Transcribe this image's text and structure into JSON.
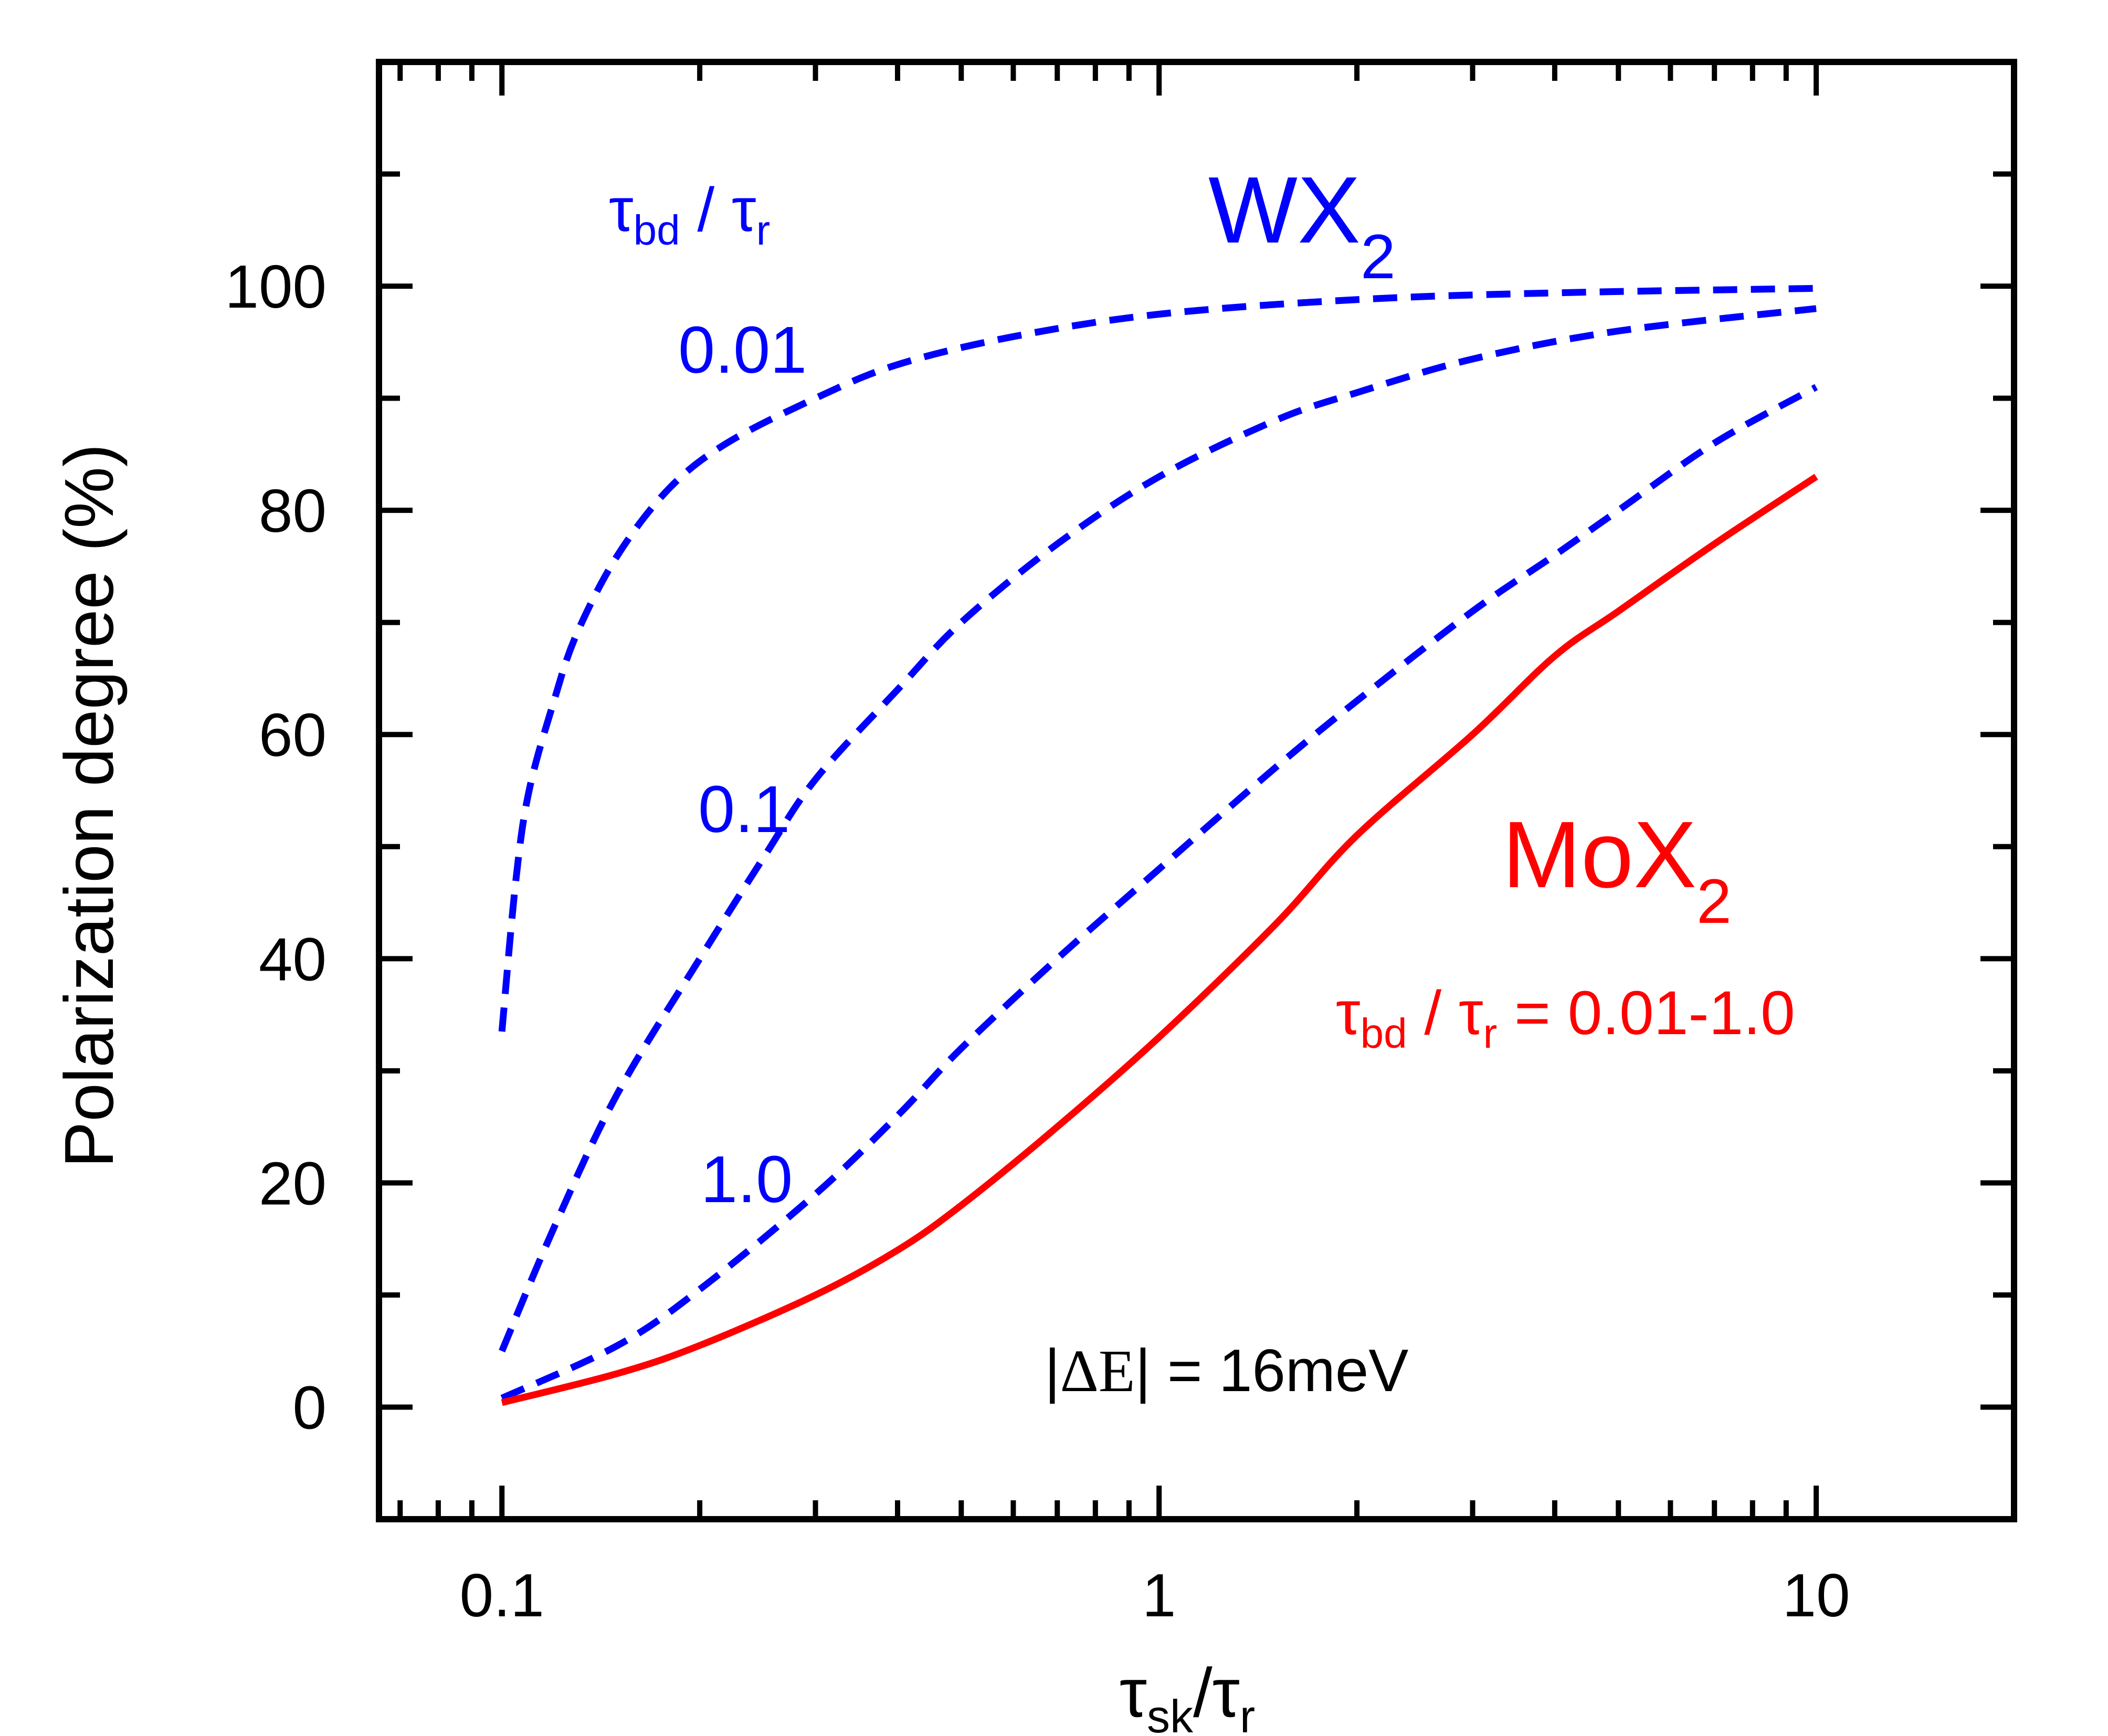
{
  "chart_data": {
    "type": "line",
    "xscale": "log",
    "xlim": [
      0.065,
      20
    ],
    "ylim": [
      -10,
      120
    ],
    "xlabel": {
      "tau": "τ",
      "sub1": "sk",
      "slash": "/",
      "tau2": "τ",
      "sub2": "r"
    },
    "ylabel": "Polarization degree (%)",
    "xticks": [
      {
        "value": 0.1,
        "label": "0.1"
      },
      {
        "value": 1,
        "label": "1"
      },
      {
        "value": 10,
        "label": "10"
      }
    ],
    "yticks": [
      {
        "value": 0,
        "label": "0"
      },
      {
        "value": 20,
        "label": "20"
      },
      {
        "value": 40,
        "label": "40"
      },
      {
        "value": 60,
        "label": "60"
      },
      {
        "value": 80,
        "label": "80"
      },
      {
        "value": 100,
        "label": "100"
      }
    ],
    "series": [
      {
        "name": "WX2 τbd/τr = 0.01",
        "label": "0.01",
        "style": "dashed",
        "color": "#0000ff",
        "x": [
          0.1,
          0.105,
          0.11,
          0.12,
          0.13,
          0.15,
          0.18,
          0.22,
          0.3,
          0.4,
          0.6,
          1,
          2,
          4,
          10
        ],
        "y": [
          33.5,
          47,
          55,
          63,
          69,
          76,
          82,
          86,
          90,
          93,
          95.5,
          97.5,
          98.8,
          99.4,
          99.8
        ]
      },
      {
        "name": "WX2 τbd/τr = 0.1",
        "label": "0.1",
        "style": "dashed",
        "color": "#0000ff",
        "x": [
          0.1,
          0.12,
          0.15,
          0.2,
          0.25,
          0.3,
          0.4,
          0.5,
          0.7,
          1,
          1.5,
          2,
          3,
          5,
          10
        ],
        "y": [
          5,
          16,
          28,
          40,
          49,
          56,
          64,
          70,
          77,
          83,
          88,
          90.5,
          93.5,
          96,
          98
        ]
      },
      {
        "name": "WX2 τbd/τr = 1.0",
        "label": "1.0",
        "style": "dashed",
        "color": "#0000ff",
        "x": [
          0.1,
          0.15,
          0.2,
          0.3,
          0.4,
          0.5,
          0.7,
          1,
          1.5,
          2,
          3,
          4,
          5,
          7,
          10
        ],
        "y": [
          0.8,
          5.5,
          10.5,
          19,
          26,
          32,
          40,
          48,
          57,
          63,
          71,
          76,
          80,
          86,
          91
        ]
      },
      {
        "name": "MoX2 τbd/τr = 0.01-1.0",
        "style": "solid",
        "color": "#ff0000",
        "x": [
          0.1,
          0.15,
          0.2,
          0.3,
          0.4,
          0.5,
          0.7,
          1,
          1.5,
          2,
          3,
          4,
          5,
          7,
          10
        ],
        "y": [
          0.4,
          3,
          5.5,
          10,
          14,
          18,
          25,
          33,
          43,
          51,
          60,
          67,
          71,
          77,
          83
        ]
      }
    ],
    "annotations": {
      "legend_title": {
        "tau": "τ",
        "sub1": "bd",
        "slash": " / ",
        "tau2": "τ",
        "sub2": "r"
      },
      "wx2": {
        "main": "WX",
        "sub": "2"
      },
      "mox2": {
        "main": "MoX",
        "sub": "2"
      },
      "mox2_range": {
        "tau": "τ",
        "sub1": "bd",
        "slash": " / ",
        "tau2": "τ",
        "sub2": "r",
        "rest": " = 0.01-1.0"
      },
      "delta_e": {
        "bar1": "|",
        "delta": "ΔE",
        "bar2": "|",
        "rest": " = 16meV"
      }
    },
    "colors": {
      "wx2": "#0000ff",
      "mox2": "#ff0000",
      "axis": "#000000"
    }
  }
}
